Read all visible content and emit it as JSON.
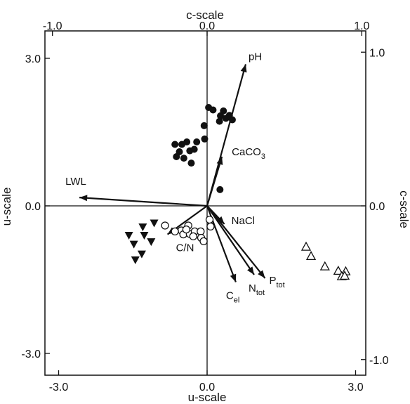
{
  "chart_data": {
    "type": "scatter",
    "title": "",
    "xlabel_bottom": "u-scale",
    "xlabel_top": "c-scale",
    "ylabel_left": "u-scale",
    "ylabel_right": "c-scale",
    "xlim": [
      -3.5,
      3.5
    ],
    "ylim": [
      -3.5,
      3.5
    ],
    "c_scale_lim": [
      -1.12,
      1.12
    ],
    "grid": false,
    "zero_lines": true,
    "bottom_ticks": [
      {
        "value": -3.0,
        "label": "-3.0"
      },
      {
        "value": 0.0,
        "label": "0.0"
      },
      {
        "value": 3.0,
        "label": "3.0"
      }
    ],
    "left_ticks": [
      {
        "value": 3.0,
        "label": "3.0"
      },
      {
        "value": 0.0,
        "label": "0.0"
      },
      {
        "value": -3.0,
        "label": "-3.0"
      }
    ],
    "top_ticks": [
      {
        "value": -1.0,
        "label": "-1.0"
      },
      {
        "value": 0.0,
        "label": "0.0"
      },
      {
        "value": 1.0,
        "label": "1.0"
      }
    ],
    "right_ticks": [
      {
        "value": 1.0,
        "label": "1.0"
      },
      {
        "value": 0.0,
        "label": "0.0"
      },
      {
        "value": -1.0,
        "label": "-1.0"
      }
    ],
    "vectors": [
      {
        "label": "pH",
        "sub": "",
        "x": 0.78,
        "y": 2.88
      },
      {
        "label": "CaCO",
        "sub": "3",
        "x": 0.3,
        "y": 1.0
      },
      {
        "label": "LWL",
        "sub": "",
        "x": -2.58,
        "y": 0.17
      },
      {
        "label": "NaCl",
        "sub": "",
        "x": 0.35,
        "y": -0.37
      },
      {
        "label": "C/N",
        "sub": "",
        "x": -0.8,
        "y": -0.58
      },
      {
        "label": "C",
        "sub": "el",
        "x": 0.58,
        "y": -1.55
      },
      {
        "label": "N",
        "sub": "tot",
        "x": 0.95,
        "y": -1.4
      },
      {
        "label": "P",
        "sub": "tot",
        "x": 1.17,
        "y": -1.47
      }
    ],
    "series": [
      {
        "marker": "filled-circle",
        "points": [
          [
            0.03,
            2.0
          ],
          [
            0.12,
            1.95
          ],
          [
            -0.06,
            1.63
          ],
          [
            0.33,
            1.93
          ],
          [
            0.27,
            1.83
          ],
          [
            0.45,
            1.84
          ],
          [
            0.38,
            1.78
          ],
          [
            0.51,
            1.75
          ],
          [
            0.25,
            1.72
          ],
          [
            -0.05,
            1.36
          ],
          [
            -0.65,
            1.25
          ],
          [
            -0.51,
            1.25
          ],
          [
            -0.41,
            1.3
          ],
          [
            -0.21,
            1.3
          ],
          [
            -0.56,
            1.1
          ],
          [
            -0.35,
            1.12
          ],
          [
            -0.26,
            1.15
          ],
          [
            -0.62,
            1.0
          ],
          [
            -0.47,
            0.97
          ],
          [
            -0.32,
            0.87
          ],
          [
            0.26,
            0.33
          ]
        ]
      },
      {
        "marker": "open-circle",
        "points": [
          [
            -0.85,
            -0.4
          ],
          [
            -0.38,
            -0.4
          ],
          [
            -0.52,
            -0.5
          ],
          [
            -0.65,
            -0.52
          ],
          [
            -0.48,
            -0.58
          ],
          [
            -0.35,
            -0.57
          ],
          [
            -0.25,
            -0.52
          ],
          [
            -0.13,
            -0.52
          ],
          [
            -0.28,
            -0.62
          ],
          [
            -0.12,
            -0.65
          ],
          [
            -0.07,
            -0.72
          ],
          [
            0.05,
            -0.28
          ],
          [
            0.07,
            -0.42
          ],
          [
            -0.42,
            -0.48
          ]
        ]
      },
      {
        "marker": "filled-triangle-down",
        "points": [
          [
            -1.07,
            -0.35
          ],
          [
            -1.3,
            -0.43
          ],
          [
            -1.58,
            -0.6
          ],
          [
            -1.27,
            -0.6
          ],
          [
            -1.13,
            -0.73
          ],
          [
            -1.48,
            -0.78
          ],
          [
            -1.32,
            -0.98
          ],
          [
            -1.45,
            -1.1
          ]
        ]
      },
      {
        "marker": "open-triangle-up",
        "points": [
          [
            2.0,
            -0.83
          ],
          [
            2.1,
            -1.02
          ],
          [
            2.38,
            -1.23
          ],
          [
            2.65,
            -1.32
          ],
          [
            2.8,
            -1.33
          ],
          [
            2.72,
            -1.43
          ],
          [
            2.78,
            -1.42
          ]
        ]
      }
    ]
  }
}
